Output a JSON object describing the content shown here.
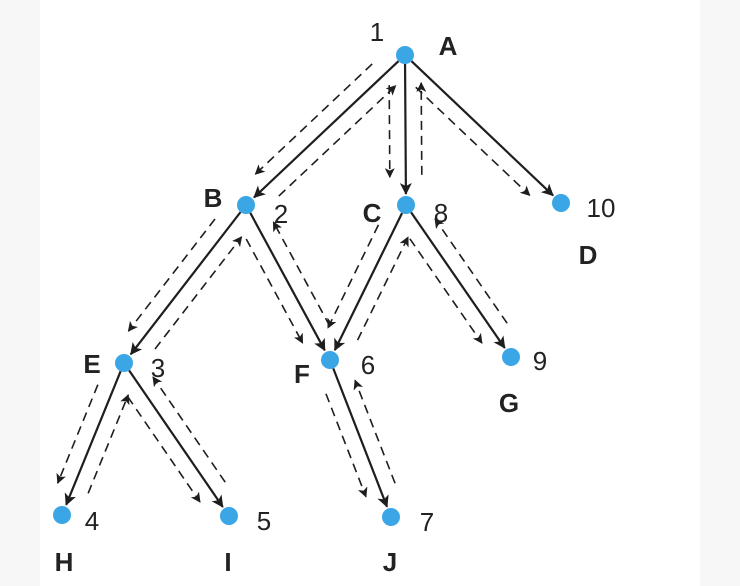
{
  "colors": {
    "node": "#3aa6e6",
    "edge": "#1e1e1e",
    "dashed": "#1e1e1e",
    "text": "#222222"
  },
  "nodes": [
    {
      "id": "A",
      "order": "1"
    },
    {
      "id": "B",
      "order": "2"
    },
    {
      "id": "C",
      "order": "8"
    },
    {
      "id": "D",
      "order": "10"
    },
    {
      "id": "E",
      "order": "3"
    },
    {
      "id": "F",
      "order": "6"
    },
    {
      "id": "G",
      "order": "9"
    },
    {
      "id": "H",
      "order": "4"
    },
    {
      "id": "I",
      "order": "5"
    },
    {
      "id": "J",
      "order": "7"
    }
  ],
  "edges": [
    {
      "from": "A",
      "to": "B"
    },
    {
      "from": "A",
      "to": "C"
    },
    {
      "from": "A",
      "to": "D"
    },
    {
      "from": "B",
      "to": "E"
    },
    {
      "from": "B",
      "to": "F"
    },
    {
      "from": "C",
      "to": "F"
    },
    {
      "from": "C",
      "to": "G"
    },
    {
      "from": "E",
      "to": "H"
    },
    {
      "from": "E",
      "to": "I"
    },
    {
      "from": "F",
      "to": "J"
    }
  ],
  "traversal_arrows": [
    {
      "from": "A",
      "to": "B",
      "direction": "down"
    },
    {
      "from": "B",
      "to": "A",
      "direction": "up"
    },
    {
      "from": "B",
      "to": "E",
      "direction": "down"
    },
    {
      "from": "E",
      "to": "B",
      "direction": "up"
    },
    {
      "from": "E",
      "to": "H",
      "direction": "down"
    },
    {
      "from": "H",
      "to": "E",
      "direction": "up"
    },
    {
      "from": "E",
      "to": "I",
      "direction": "down"
    },
    {
      "from": "I",
      "to": "E",
      "direction": "up"
    },
    {
      "from": "B",
      "to": "F",
      "direction": "down"
    },
    {
      "from": "F",
      "to": "B",
      "direction": "up"
    },
    {
      "from": "F",
      "to": "J",
      "direction": "down"
    },
    {
      "from": "J",
      "to": "F",
      "direction": "up"
    },
    {
      "from": "C",
      "to": "F",
      "direction": "down"
    },
    {
      "from": "F",
      "to": "C",
      "direction": "up"
    },
    {
      "from": "A",
      "to": "C",
      "direction": "down"
    },
    {
      "from": "C",
      "to": "A",
      "direction": "up"
    },
    {
      "from": "C",
      "to": "G",
      "direction": "down"
    },
    {
      "from": "G",
      "to": "C",
      "direction": "up"
    },
    {
      "from": "A",
      "to": "D",
      "direction": "down"
    }
  ]
}
